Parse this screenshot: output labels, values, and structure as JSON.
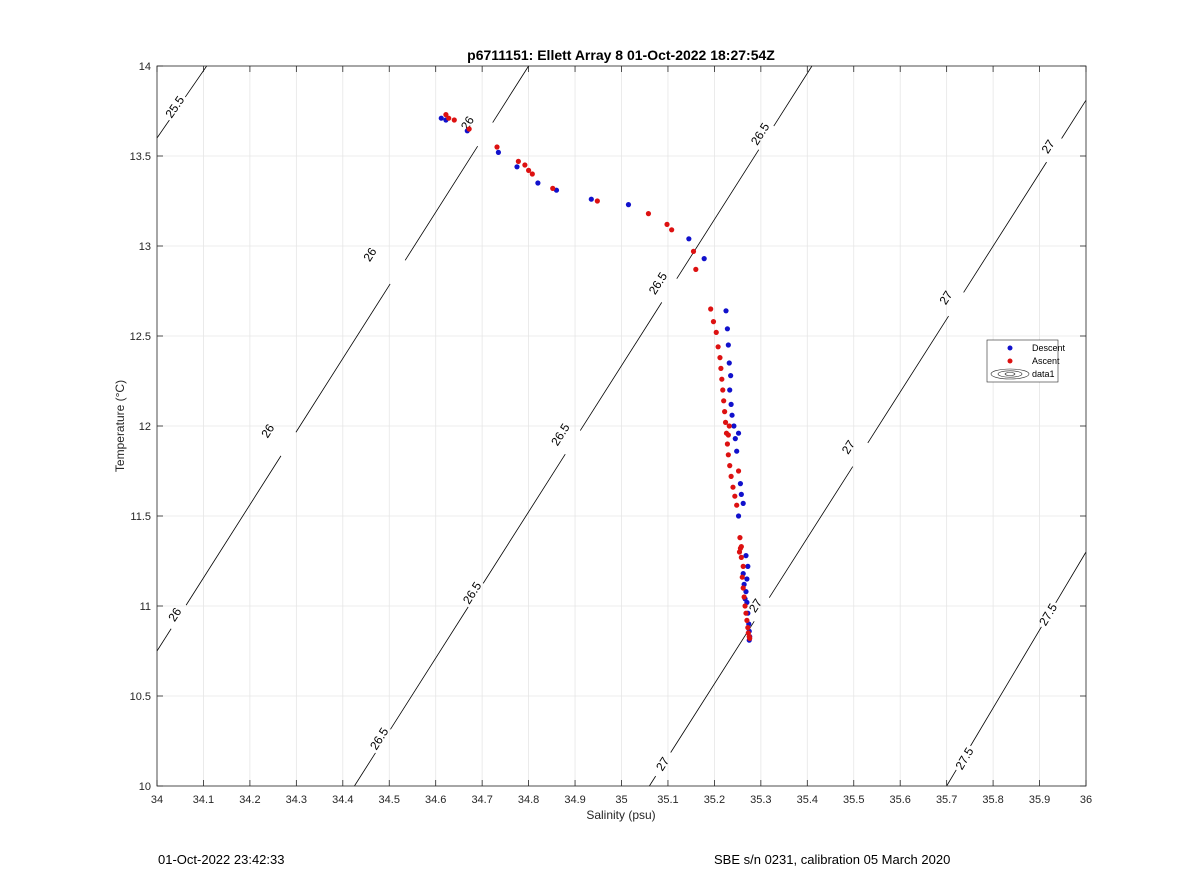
{
  "chart_data": {
    "type": "scatter",
    "title": "p6711151: Ellett Array 8 01-Oct-2022 18:27:54Z",
    "xlabel": "Salinity (psu)",
    "ylabel": "Temperature (°C)",
    "xlim": [
      34,
      36
    ],
    "ylim": [
      10,
      14
    ],
    "xticks": [
      "34",
      "34.1",
      "34.2",
      "34.3",
      "34.4",
      "34.5",
      "34.6",
      "34.7",
      "34.8",
      "34.9",
      "35",
      "35.1",
      "35.2",
      "35.3",
      "35.4",
      "35.5",
      "35.6",
      "35.7",
      "35.8",
      "35.9",
      "36"
    ],
    "yticks": [
      "10",
      "10.5",
      "11",
      "11.5",
      "12",
      "12.5",
      "13",
      "13.5",
      "14"
    ],
    "grid": true,
    "legend_position": "right",
    "legend": [
      {
        "label": "Descent",
        "color": "#1111cc",
        "marker": "dot"
      },
      {
        "label": "Ascent",
        "color": "#dd1111",
        "marker": "dot"
      },
      {
        "label": "data1",
        "marker": "contour"
      }
    ],
    "contours": [
      {
        "level": "25.5",
        "points": [
          [
            34.0,
            13.6
          ],
          [
            34.107,
            14.0
          ]
        ],
        "labels": [
          [
            34.04,
            13.77
          ]
        ]
      },
      {
        "level": "26",
        "points": [
          [
            34.0,
            10.75
          ],
          [
            34.8,
            14.0
          ]
        ],
        "labels": [
          [
            34.04,
            10.95
          ],
          [
            34.24,
            11.97
          ],
          [
            34.46,
            12.95
          ],
          [
            34.67,
            13.68
          ]
        ]
      },
      {
        "level": "26.5",
        "points": [
          [
            34.425,
            10.0
          ],
          [
            35.41,
            14.0
          ]
        ],
        "labels": [
          [
            34.48,
            10.26
          ],
          [
            34.68,
            11.07
          ],
          [
            34.87,
            11.95
          ],
          [
            35.08,
            12.79
          ],
          [
            35.3,
            13.62
          ]
        ]
      },
      {
        "level": "27",
        "points": [
          [
            35.06,
            10.0
          ],
          [
            36.0,
            13.81
          ]
        ],
        "labels": [
          [
            35.09,
            10.12
          ],
          [
            35.29,
            11.0
          ],
          [
            35.49,
            11.88
          ],
          [
            35.7,
            12.71
          ],
          [
            35.92,
            13.55
          ]
        ]
      },
      {
        "level": "27.5",
        "points": [
          [
            35.7,
            10.0
          ],
          [
            36.0,
            11.3
          ]
        ],
        "labels": [
          [
            35.74,
            10.15
          ],
          [
            35.92,
            10.95
          ]
        ]
      }
    ],
    "series": [
      {
        "name": "Descent",
        "color": "#1111cc",
        "points": [
          [
            34.612,
            13.71
          ],
          [
            34.622,
            13.7
          ],
          [
            34.668,
            13.64
          ],
          [
            34.735,
            13.52
          ],
          [
            34.775,
            13.44
          ],
          [
            34.82,
            13.35
          ],
          [
            34.86,
            13.31
          ],
          [
            34.935,
            13.26
          ],
          [
            35.015,
            13.23
          ],
          [
            35.145,
            13.04
          ],
          [
            35.178,
            12.93
          ],
          [
            35.225,
            12.64
          ],
          [
            35.228,
            12.54
          ],
          [
            35.23,
            12.45
          ],
          [
            35.232,
            12.35
          ],
          [
            35.235,
            12.28
          ],
          [
            35.233,
            12.2
          ],
          [
            35.236,
            12.12
          ],
          [
            35.238,
            12.06
          ],
          [
            35.242,
            12.0
          ],
          [
            35.245,
            11.93
          ],
          [
            35.248,
            11.86
          ],
          [
            35.252,
            11.96
          ],
          [
            35.256,
            11.68
          ],
          [
            35.258,
            11.62
          ],
          [
            35.262,
            11.57
          ],
          [
            35.252,
            11.5
          ],
          [
            35.268,
            11.28
          ],
          [
            35.272,
            11.22
          ],
          [
            35.27,
            11.15
          ],
          [
            35.268,
            11.08
          ],
          [
            35.27,
            11.02
          ],
          [
            35.272,
            10.96
          ],
          [
            35.274,
            10.9
          ],
          [
            35.275,
            10.86
          ],
          [
            35.276,
            10.83
          ],
          [
            35.275,
            10.81
          ],
          [
            35.262,
            11.18
          ],
          [
            35.264,
            11.12
          ],
          [
            35.266,
            11.04
          ]
        ]
      },
      {
        "name": "Ascent",
        "color": "#dd1111",
        "points": [
          [
            34.622,
            13.73
          ],
          [
            34.628,
            13.71
          ],
          [
            34.64,
            13.7
          ],
          [
            34.672,
            13.65
          ],
          [
            34.732,
            13.55
          ],
          [
            34.778,
            13.47
          ],
          [
            34.792,
            13.45
          ],
          [
            34.8,
            13.42
          ],
          [
            34.808,
            13.4
          ],
          [
            34.852,
            13.32
          ],
          [
            34.948,
            13.25
          ],
          [
            35.058,
            13.18
          ],
          [
            35.098,
            13.12
          ],
          [
            35.108,
            13.09
          ],
          [
            35.155,
            12.97
          ],
          [
            35.16,
            12.87
          ],
          [
            35.192,
            12.65
          ],
          [
            35.198,
            12.58
          ],
          [
            35.204,
            12.52
          ],
          [
            35.208,
            12.44
          ],
          [
            35.212,
            12.38
          ],
          [
            35.214,
            12.32
          ],
          [
            35.216,
            12.26
          ],
          [
            35.218,
            12.2
          ],
          [
            35.22,
            12.14
          ],
          [
            35.222,
            12.08
          ],
          [
            35.224,
            12.02
          ],
          [
            35.226,
            11.96
          ],
          [
            35.228,
            11.9
          ],
          [
            35.23,
            11.84
          ],
          [
            35.233,
            11.78
          ],
          [
            35.236,
            11.72
          ],
          [
            35.24,
            11.66
          ],
          [
            35.244,
            11.61
          ],
          [
            35.248,
            11.56
          ],
          [
            35.252,
            11.75
          ],
          [
            35.255,
            11.38
          ],
          [
            35.258,
            11.33
          ],
          [
            35.254,
            11.3
          ],
          [
            35.258,
            11.27
          ],
          [
            35.262,
            11.22
          ],
          [
            35.26,
            11.16
          ],
          [
            35.262,
            11.1
          ],
          [
            35.264,
            11.05
          ],
          [
            35.266,
            11.0
          ],
          [
            35.268,
            10.96
          ],
          [
            35.27,
            10.92
          ],
          [
            35.272,
            10.88
          ],
          [
            35.273,
            10.85
          ],
          [
            35.275,
            10.83
          ],
          [
            35.276,
            10.82
          ],
          [
            35.256,
            11.32
          ],
          [
            35.23,
            11.95
          ],
          [
            35.232,
            12.0
          ]
        ]
      }
    ]
  },
  "footer": {
    "left": "01-Oct-2022 23:42:33",
    "right": "SBE s/n 0231, calibration 05 March 2020"
  }
}
